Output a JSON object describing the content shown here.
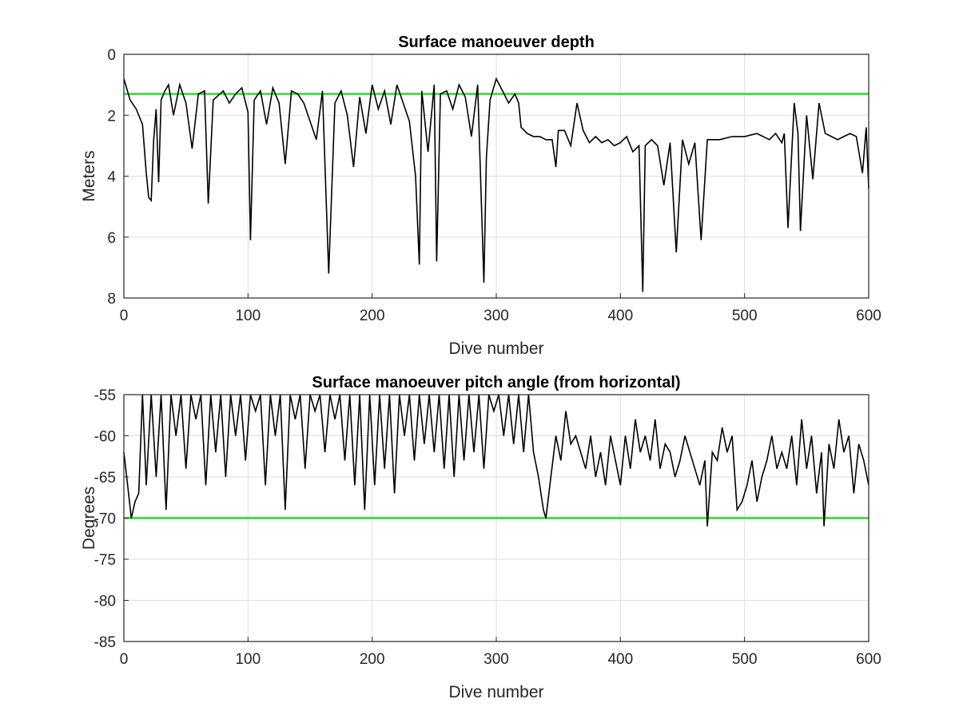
{
  "chart_data": [
    {
      "type": "line",
      "title": "Surface manoeuver depth",
      "xlabel": "Dive number",
      "ylabel": "Meters",
      "xlim": [
        0,
        600
      ],
      "ylim": [
        0,
        8
      ],
      "y_reversed": true,
      "grid": true,
      "xticks": [
        0,
        100,
        200,
        300,
        400,
        500,
        600
      ],
      "yticks": [
        0,
        2,
        4,
        6,
        8
      ],
      "reference_line": {
        "y": 1.3,
        "color": "#22dd22"
      },
      "series": [
        {
          "color": "#000000",
          "x": [
            0,
            5,
            10,
            15,
            18,
            20,
            22,
            24,
            26,
            28,
            30,
            33,
            36,
            40,
            45,
            50,
            55,
            60,
            65,
            68,
            72,
            80,
            85,
            90,
            95,
            100,
            102,
            105,
            110,
            115,
            120,
            125,
            130,
            135,
            140,
            145,
            150,
            155,
            160,
            165,
            170,
            175,
            180,
            185,
            190,
            195,
            200,
            205,
            210,
            215,
            220,
            225,
            230,
            235,
            238,
            240,
            245,
            250,
            252,
            255,
            260,
            265,
            270,
            275,
            280,
            285,
            290,
            292,
            295,
            300,
            305,
            310,
            315,
            318,
            320,
            325,
            330,
            335,
            340,
            345,
            348,
            350,
            355,
            360,
            365,
            370,
            375,
            380,
            385,
            390,
            395,
            400,
            405,
            410,
            415,
            418,
            420,
            425,
            430,
            435,
            440,
            445,
            450,
            455,
            460,
            465,
            470,
            480,
            490,
            500,
            510,
            520,
            525,
            530,
            532,
            535,
            540,
            543,
            545,
            550,
            555,
            560,
            565,
            570,
            575,
            580,
            585,
            590,
            595,
            598,
            600
          ],
          "y": [
            0.8,
            1.5,
            1.8,
            2.3,
            3.9,
            4.7,
            4.8,
            2.8,
            1.8,
            4.2,
            1.5,
            1.2,
            1.0,
            2.0,
            1.0,
            1.6,
            3.1,
            1.3,
            1.2,
            4.9,
            1.5,
            1.2,
            1.6,
            1.3,
            1.1,
            1.9,
            6.1,
            1.5,
            1.2,
            2.3,
            1.1,
            1.6,
            3.6,
            1.2,
            1.3,
            1.6,
            2.2,
            2.8,
            1.2,
            7.2,
            1.6,
            1.2,
            2.0,
            3.7,
            1.4,
            2.6,
            1.0,
            1.8,
            1.2,
            2.3,
            1.0,
            1.6,
            2.2,
            4.0,
            6.9,
            1.2,
            3.2,
            1.0,
            6.8,
            1.3,
            1.2,
            1.8,
            1.0,
            1.4,
            2.7,
            1.0,
            7.5,
            3.4,
            1.5,
            0.8,
            1.2,
            1.6,
            1.3,
            1.6,
            2.4,
            2.6,
            2.7,
            2.7,
            2.8,
            2.8,
            3.7,
            2.5,
            2.5,
            3.0,
            1.6,
            2.5,
            2.9,
            2.7,
            2.9,
            2.8,
            3.0,
            2.9,
            2.7,
            3.2,
            3.0,
            7.8,
            3.0,
            2.8,
            3.0,
            4.3,
            2.9,
            6.5,
            2.8,
            3.6,
            2.9,
            6.1,
            2.8,
            2.8,
            2.7,
            2.7,
            2.6,
            2.8,
            2.6,
            2.9,
            2.6,
            5.7,
            1.6,
            2.6,
            5.8,
            2.0,
            4.1,
            1.6,
            2.6,
            2.7,
            2.8,
            2.7,
            2.6,
            2.7,
            3.9,
            2.4,
            4.4
          ]
        }
      ]
    },
    {
      "type": "line",
      "title": "Surface manoeuver pitch angle (from horizontal)",
      "xlabel": "Dive number",
      "ylabel": "Degrees",
      "xlim": [
        0,
        600
      ],
      "ylim": [
        -85,
        -55
      ],
      "grid": true,
      "xticks": [
        0,
        100,
        200,
        300,
        400,
        500,
        600
      ],
      "yticks": [
        -55,
        -60,
        -65,
        -70,
        -75,
        -80,
        -85
      ],
      "reference_line": {
        "y": -70,
        "color": "#22dd22"
      },
      "series": [
        {
          "color": "#000000",
          "x": [
            0,
            3,
            6,
            9,
            12,
            15,
            18,
            22,
            26,
            30,
            34,
            38,
            42,
            46,
            50,
            54,
            58,
            62,
            66,
            70,
            74,
            78,
            82,
            86,
            90,
            94,
            98,
            102,
            106,
            110,
            114,
            118,
            122,
            126,
            130,
            134,
            138,
            142,
            146,
            150,
            154,
            158,
            162,
            166,
            170,
            174,
            178,
            182,
            186,
            190,
            194,
            198,
            202,
            206,
            210,
            214,
            218,
            222,
            226,
            230,
            234,
            238,
            242,
            246,
            250,
            254,
            258,
            262,
            266,
            270,
            274,
            278,
            282,
            286,
            290,
            294,
            298,
            302,
            306,
            310,
            314,
            318,
            322,
            326,
            330,
            334,
            338,
            340,
            344,
            348,
            352,
            356,
            360,
            364,
            368,
            372,
            376,
            380,
            384,
            388,
            392,
            396,
            400,
            404,
            408,
            412,
            416,
            420,
            424,
            428,
            432,
            436,
            440,
            444,
            448,
            452,
            456,
            460,
            464,
            468,
            470,
            474,
            478,
            482,
            486,
            490,
            494,
            498,
            502,
            506,
            510,
            514,
            518,
            522,
            526,
            530,
            534,
            538,
            542,
            546,
            550,
            554,
            558,
            562,
            564,
            568,
            572,
            576,
            580,
            584,
            588,
            592,
            596,
            600
          ],
          "y": [
            -62,
            -66,
            -70,
            -68,
            -67,
            -55,
            -66,
            -55,
            -65,
            -55,
            -69,
            -55,
            -60,
            -55,
            -64,
            -55,
            -58,
            -55,
            -66,
            -55,
            -62,
            -55,
            -65,
            -55,
            -60,
            -55,
            -63,
            -55,
            -57,
            -55,
            -66,
            -55,
            -60,
            -55,
            -69,
            -55,
            -58,
            -55,
            -64,
            -55,
            -57,
            -55,
            -62,
            -55,
            -58,
            -55,
            -63,
            -55,
            -66,
            -55,
            -69,
            -55,
            -66,
            -55,
            -64,
            -55,
            -67,
            -55,
            -60,
            -55,
            -63,
            -55,
            -61,
            -55,
            -62,
            -55,
            -64,
            -55,
            -65,
            -55,
            -63,
            -55,
            -62,
            -55,
            -64,
            -55,
            -57,
            -55,
            -60,
            -55,
            -61,
            -55,
            -62,
            -55,
            -62,
            -65,
            -69,
            -70,
            -65,
            -60,
            -63,
            -57,
            -61,
            -60,
            -62,
            -64,
            -60,
            -65,
            -62,
            -66,
            -60,
            -63,
            -66,
            -60,
            -64,
            -58,
            -62,
            -60,
            -63,
            -58,
            -64,
            -61,
            -62,
            -65,
            -63,
            -60,
            -62,
            -64,
            -66,
            -63,
            -71,
            -62,
            -63,
            -59,
            -62,
            -60,
            -69,
            -68,
            -66,
            -63,
            -68,
            -65,
            -63,
            -60,
            -64,
            -62,
            -64,
            -60,
            -66,
            -58,
            -64,
            -60,
            -67,
            -62,
            -71,
            -61,
            -64,
            -58,
            -62,
            -60,
            -67,
            -61,
            -63,
            -66
          ]
        }
      ]
    }
  ]
}
